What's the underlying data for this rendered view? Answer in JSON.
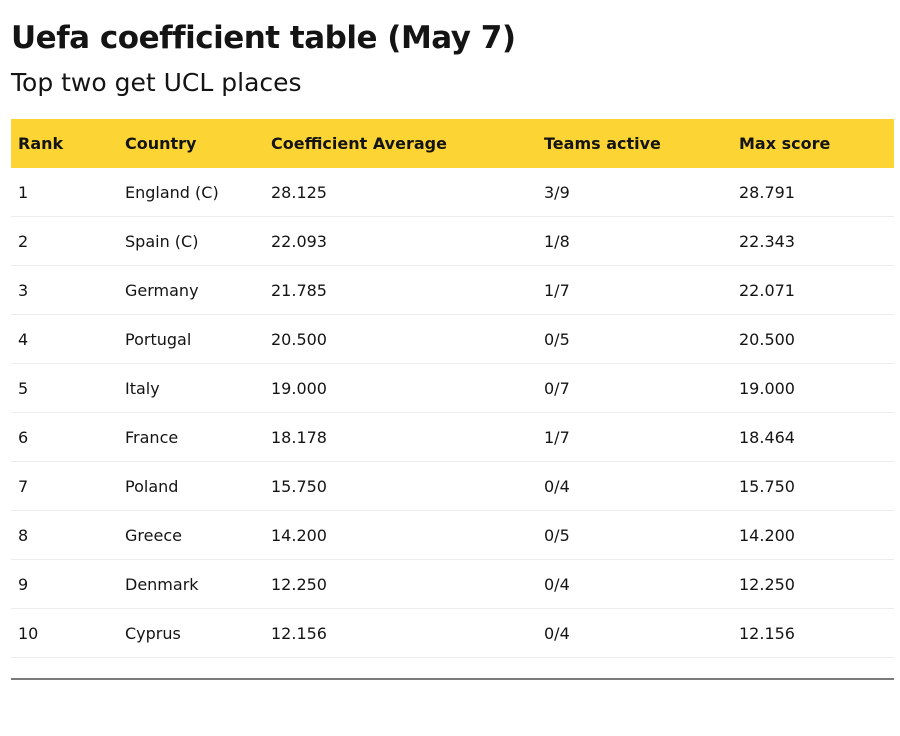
{
  "header": {
    "title": "Uefa coefficient table (May 7)",
    "subtitle": "Top two get UCL places"
  },
  "table": {
    "columns": [
      "Rank",
      "Country",
      "Coefficient Average",
      "Teams active",
      "Max score"
    ],
    "rows": [
      [
        "1",
        "England (C)",
        "28.125",
        "3/9",
        "28.791"
      ],
      [
        "2",
        "Spain (C)",
        "22.093",
        "1/8",
        "22.343"
      ],
      [
        "3",
        "Germany",
        "21.785",
        "1/7",
        "22.071"
      ],
      [
        "4",
        "Portugal",
        "20.500",
        "0/5",
        "20.500"
      ],
      [
        "5",
        "Italy",
        "19.000",
        "0/7",
        "19.000"
      ],
      [
        "6",
        "France",
        "18.178",
        "1/7",
        "18.464"
      ],
      [
        "7",
        "Poland",
        "15.750",
        "0/4",
        "15.750"
      ],
      [
        "8",
        "Greece",
        "14.200",
        "0/5",
        "14.200"
      ],
      [
        "9",
        "Denmark",
        "12.250",
        "0/4",
        "12.250"
      ],
      [
        "10",
        "Cyprus",
        "12.156",
        "0/4",
        "12.156"
      ]
    ]
  }
}
